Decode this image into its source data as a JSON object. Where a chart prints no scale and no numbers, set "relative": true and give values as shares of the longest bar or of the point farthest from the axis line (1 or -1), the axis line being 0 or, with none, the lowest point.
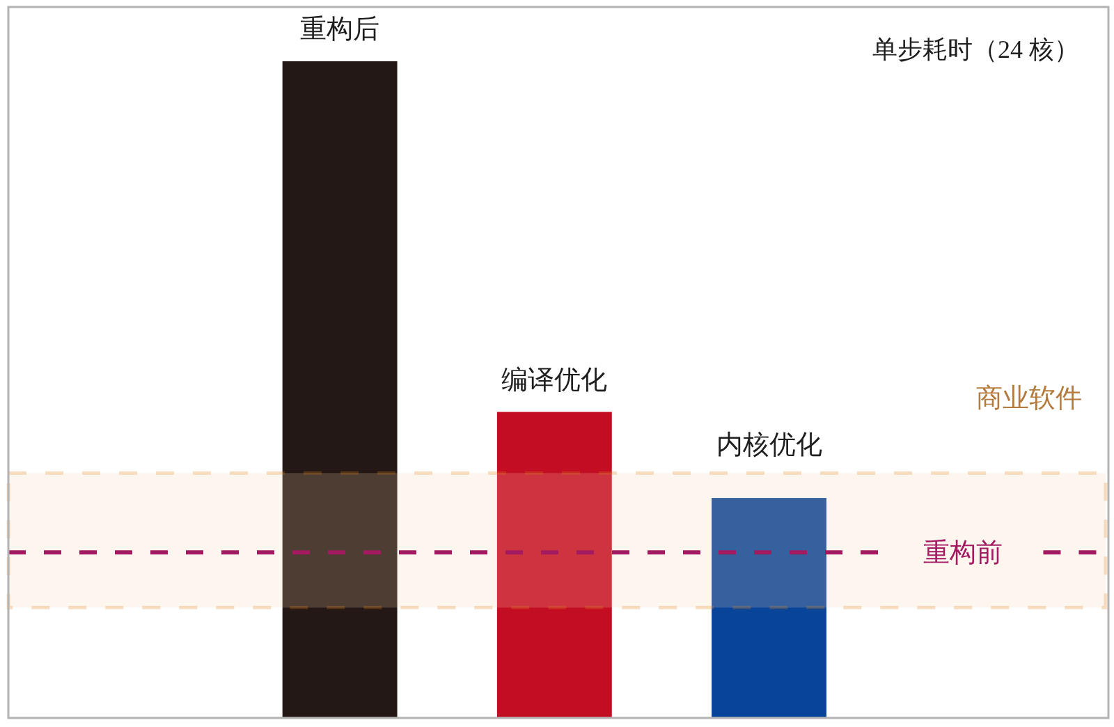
{
  "chart_data": {
    "type": "bar",
    "title": "单步耗时（24 核）",
    "categories": [
      "重构后",
      "编译优化",
      "内核优化"
    ],
    "values": [
      1,
      0.466,
      0.335
    ],
    "colors": [
      "#231815",
      "#c30d23",
      "#07449a"
    ],
    "relative": true,
    "ref_lines": [
      {
        "axis": "y",
        "value": 0.252,
        "label": "重构前",
        "color": "#a31a61",
        "line_style": "dashed"
      }
    ],
    "bands": [
      {
        "axis": "y",
        "from": 0.168,
        "to": 0.373,
        "label": "商业软件",
        "color": "#e3831b"
      }
    ]
  }
}
